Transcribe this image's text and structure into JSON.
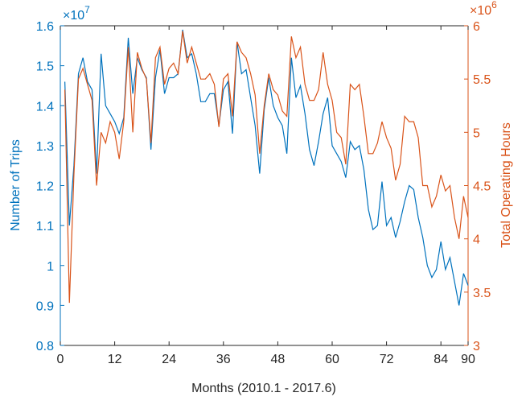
{
  "chart_data": {
    "type": "line",
    "x_label": "Months (2010.1 - 2017.6)",
    "y_label": "Number of Trips",
    "y2_label": "Total Operating Hours",
    "y_scale_label": {
      "base": "×10",
      "exponent": "7"
    },
    "y2_scale_label": {
      "base": "×10",
      "exponent": "6"
    },
    "x": [
      1,
      2,
      3,
      4,
      5,
      6,
      7,
      8,
      9,
      10,
      11,
      12,
      13,
      14,
      15,
      16,
      17,
      18,
      19,
      20,
      21,
      22,
      23,
      24,
      25,
      26,
      27,
      28,
      29,
      30,
      31,
      32,
      33,
      34,
      35,
      36,
      37,
      38,
      39,
      40,
      41,
      42,
      43,
      44,
      45,
      46,
      47,
      48,
      49,
      50,
      51,
      52,
      53,
      54,
      55,
      56,
      57,
      58,
      59,
      60,
      61,
      62,
      63,
      64,
      65,
      66,
      67,
      68,
      69,
      70,
      71,
      72,
      73,
      74,
      75,
      76,
      77,
      78,
      79,
      80,
      81,
      82,
      83,
      84,
      85,
      86,
      87,
      88,
      89,
      90
    ],
    "xlim": [
      0,
      90
    ],
    "xticks": [
      0,
      12,
      24,
      36,
      48,
      60,
      72,
      84,
      90
    ],
    "ylim": [
      0.8,
      1.6
    ],
    "yticks": [
      0.8,
      0.9,
      1,
      1.1,
      1.2,
      1.3,
      1.4,
      1.5,
      1.6
    ],
    "y2lim": [
      3,
      6
    ],
    "y2ticks": [
      3,
      3.5,
      4,
      4.5,
      5,
      5.5,
      6
    ],
    "series": [
      {
        "name": "Number of Trips",
        "color": "#0072bd",
        "values": [
          1.46,
          1.1,
          1.25,
          1.48,
          1.52,
          1.46,
          1.44,
          1.23,
          1.53,
          1.4,
          1.38,
          1.36,
          1.33,
          1.37,
          1.57,
          1.43,
          1.52,
          1.49,
          1.47,
          1.29,
          1.47,
          1.54,
          1.43,
          1.47,
          1.47,
          1.48,
          1.59,
          1.52,
          1.53,
          1.48,
          1.41,
          1.41,
          1.43,
          1.43,
          1.35,
          1.44,
          1.46,
          1.33,
          1.56,
          1.48,
          1.49,
          1.42,
          1.35,
          1.23,
          1.39,
          1.47,
          1.4,
          1.37,
          1.35,
          1.28,
          1.52,
          1.42,
          1.45,
          1.38,
          1.29,
          1.25,
          1.31,
          1.38,
          1.42,
          1.3,
          1.28,
          1.26,
          1.22,
          1.31,
          1.29,
          1.3,
          1.24,
          1.14,
          1.09,
          1.1,
          1.21,
          1.1,
          1.12,
          1.07,
          1.11,
          1.16,
          1.2,
          1.19,
          1.12,
          1.07,
          1.0,
          0.97,
          0.99,
          1.06,
          0.99,
          1.02,
          0.96,
          0.9,
          0.98,
          0.95
        ]
      },
      {
        "name": "Total Operating Hours",
        "color": "#d95319",
        "axis": "y2",
        "values": [
          5.4,
          3.4,
          4.6,
          5.5,
          5.6,
          5.45,
          5.3,
          4.5,
          5.0,
          4.9,
          5.1,
          5.0,
          4.75,
          5.1,
          5.8,
          5.0,
          5.75,
          5.6,
          5.5,
          4.9,
          5.7,
          5.8,
          5.45,
          5.6,
          5.65,
          5.55,
          5.95,
          5.65,
          5.8,
          5.65,
          5.5,
          5.5,
          5.55,
          5.45,
          5.05,
          5.5,
          5.55,
          5.15,
          5.85,
          5.75,
          5.7,
          5.55,
          5.35,
          4.8,
          5.25,
          5.55,
          5.4,
          5.35,
          5.2,
          5.15,
          5.9,
          5.7,
          5.8,
          5.45,
          5.3,
          5.3,
          5.4,
          5.75,
          5.45,
          5.3,
          5.0,
          4.95,
          4.7,
          5.45,
          5.4,
          5.45,
          5.15,
          4.8,
          4.8,
          4.9,
          5.1,
          4.95,
          4.85,
          4.55,
          4.7,
          5.15,
          5.1,
          5.1,
          4.95,
          4.5,
          4.5,
          4.3,
          4.4,
          4.6,
          4.45,
          4.5,
          4.2,
          4.0,
          4.4,
          4.2
        ]
      }
    ]
  }
}
